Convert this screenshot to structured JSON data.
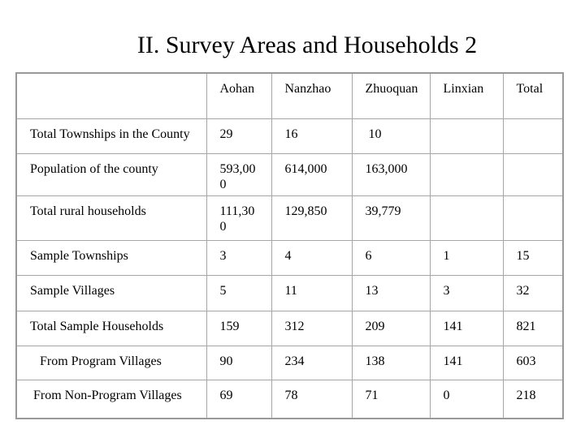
{
  "slide": {
    "title": "II. Survey Areas and Households 2"
  },
  "colors": {
    "background": "#ffffff",
    "text": "#000000",
    "table_border_outer": "#999999",
    "table_border_inner": "#a6a6a6"
  },
  "table": {
    "columns": [
      "",
      "Aohan",
      "Nanzhao",
      "Zhuoquan",
      "Linxian",
      "Total"
    ],
    "rows": [
      {
        "label": "Total Townships in the County",
        "values": [
          "29",
          "16",
          " 10",
          "",
          ""
        ]
      },
      {
        "label": "Population of the county",
        "values": [
          "593,00\n0",
          "614,000",
          "163,000",
          "",
          ""
        ]
      },
      {
        "label": "Total rural households",
        "values": [
          "111,30\n0",
          "129,850",
          "39,779",
          "",
          ""
        ]
      },
      {
        "label": "Sample Townships",
        "values": [
          "3",
          "4",
          "6",
          "1",
          "15"
        ]
      },
      {
        "label": "Sample Villages",
        "values": [
          "5",
          "11",
          "13",
          "3",
          "32"
        ]
      },
      {
        "label": "Total Sample Households",
        "values": [
          "159",
          "312",
          "209",
          "141",
          "821"
        ]
      },
      {
        "label": "   From Program Villages",
        "values": [
          "90",
          "234",
          "138",
          "141",
          "603"
        ]
      },
      {
        "label": " From Non-Program Villages",
        "values": [
          "69",
          "78",
          "71",
          "0",
          "218"
        ]
      }
    ]
  }
}
